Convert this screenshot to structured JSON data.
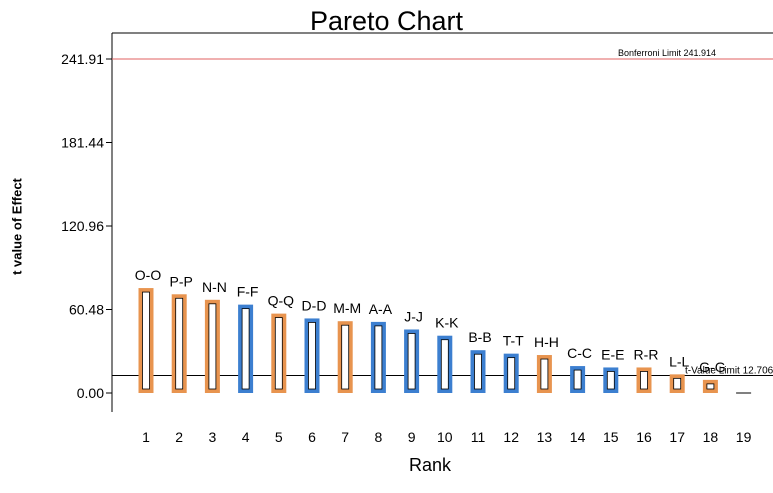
{
  "chart_data": {
    "type": "bar",
    "title": "Pareto Chart",
    "xlabel": "Rank",
    "ylabel": "t value of Effect",
    "ylim": [
      0,
      241.91
    ],
    "yticks": [
      "0.00",
      "60.48",
      "120.96",
      "181.44",
      "241.91"
    ],
    "ytick_values": [
      0,
      60.48,
      120.96,
      181.44,
      241.91
    ],
    "categories": [
      "1",
      "2",
      "3",
      "4",
      "5",
      "6",
      "7",
      "8",
      "9",
      "10",
      "11",
      "12",
      "13",
      "14",
      "15",
      "16",
      "17",
      "18",
      "19"
    ],
    "bar_labels": [
      "O-O",
      "P-P",
      "N-N",
      "F-F",
      "Q-Q",
      "D-D",
      "M-M",
      "A-A",
      "J-J",
      "K-K",
      "B-B",
      "T-T",
      "H-H",
      "C-C",
      "E-E",
      "R-R",
      "L-L",
      "G-G",
      ""
    ],
    "values": [
      76,
      71.5,
      67.5,
      64,
      57.5,
      54,
      52,
      51.5,
      46,
      41.5,
      31,
      28.5,
      27.5,
      19.5,
      18.5,
      18.5,
      13.5,
      9.5,
      0
    ],
    "signs": [
      "negative",
      "negative",
      "negative",
      "positive",
      "negative",
      "positive",
      "negative",
      "positive",
      "positive",
      "positive",
      "positive",
      "positive",
      "negative",
      "positive",
      "positive",
      "negative",
      "negative",
      "negative",
      "negative"
    ],
    "colors": {
      "negative": "#e8944f",
      "positive": "#3c7fd0",
      "bonferroni": "#e06060",
      "tlimit": "#000000"
    },
    "reference_lines": [
      {
        "name": "Bonferroni Limit",
        "label": "Bonferroni Limit 241.914",
        "value": 241.914
      },
      {
        "name": "t-Value Limit",
        "label": "t-Value Limit 12.7062",
        "value": 12.7062
      }
    ],
    "grid": false,
    "legend": "none"
  }
}
